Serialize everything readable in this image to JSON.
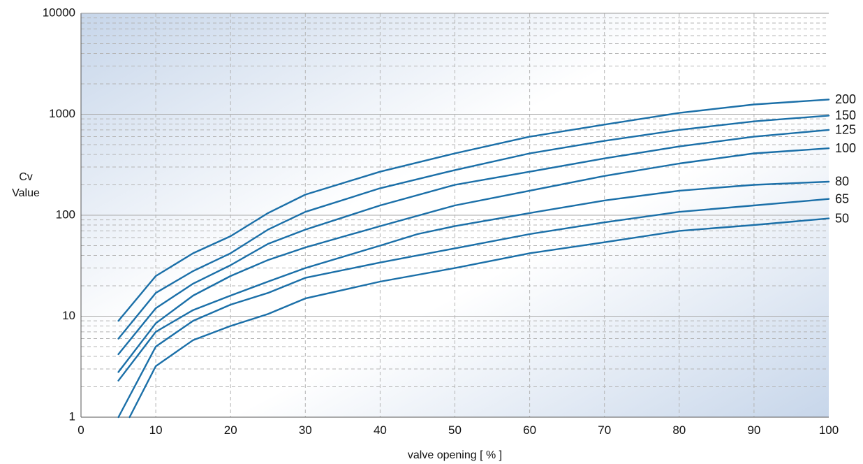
{
  "chart_data": {
    "type": "line",
    "title": "",
    "xlabel": "valve opening [ % ]",
    "ylabel": [
      "Cv",
      "Value"
    ],
    "xlim": [
      0,
      100
    ],
    "ylim": [
      1,
      10000
    ],
    "y_scale": "log",
    "x_ticks": [
      "0",
      "10",
      "20",
      "30",
      "40",
      "50",
      "60",
      "70",
      "80",
      "90",
      "100"
    ],
    "y_ticks": [
      "1",
      "10",
      "100",
      "1000",
      "10000"
    ],
    "grid": "on",
    "colors": {
      "line": "#1a6fa8",
      "grid_major": "#aaaaaa",
      "grid_minor": "#b4b4b4",
      "axis": "#555555",
      "bg_light": "#ffffff",
      "bg_dark": "#c7d6ea"
    },
    "series": [
      {
        "name": "200",
        "points": [
          [
            5,
            9
          ],
          [
            10,
            25
          ],
          [
            15,
            42
          ],
          [
            20,
            62
          ],
          [
            25,
            105
          ],
          [
            30,
            160
          ],
          [
            40,
            270
          ],
          [
            50,
            410
          ],
          [
            60,
            600
          ],
          [
            70,
            790
          ],
          [
            80,
            1030
          ],
          [
            90,
            1250
          ],
          [
            100,
            1400
          ]
        ]
      },
      {
        "name": "150",
        "points": [
          [
            5,
            6
          ],
          [
            10,
            17
          ],
          [
            15,
            28
          ],
          [
            20,
            42
          ],
          [
            25,
            72
          ],
          [
            30,
            108
          ],
          [
            40,
            185
          ],
          [
            50,
            280
          ],
          [
            60,
            410
          ],
          [
            70,
            545
          ],
          [
            80,
            700
          ],
          [
            90,
            850
          ],
          [
            100,
            970
          ]
        ]
      },
      {
        "name": "125",
        "points": [
          [
            5,
            4.2
          ],
          [
            10,
            12
          ],
          [
            15,
            21
          ],
          [
            20,
            32
          ],
          [
            25,
            52
          ],
          [
            30,
            72
          ],
          [
            40,
            125
          ],
          [
            50,
            200
          ],
          [
            60,
            270
          ],
          [
            70,
            365
          ],
          [
            80,
            480
          ],
          [
            90,
            600
          ],
          [
            100,
            700
          ]
        ]
      },
      {
        "name": "100",
        "points": [
          [
            5,
            2.8
          ],
          [
            10,
            8.5
          ],
          [
            15,
            16
          ],
          [
            20,
            25
          ],
          [
            25,
            36
          ],
          [
            30,
            48
          ],
          [
            40,
            78
          ],
          [
            50,
            125
          ],
          [
            60,
            175
          ],
          [
            70,
            245
          ],
          [
            80,
            325
          ],
          [
            90,
            410
          ],
          [
            100,
            460
          ]
        ]
      },
      {
        "name": "80",
        "points": [
          [
            5,
            2.3
          ],
          [
            10,
            7
          ],
          [
            15,
            11.5
          ],
          [
            20,
            16
          ],
          [
            25,
            22
          ],
          [
            30,
            30
          ],
          [
            40,
            50
          ],
          [
            45,
            65
          ],
          [
            50,
            78
          ],
          [
            60,
            105
          ],
          [
            70,
            140
          ],
          [
            80,
            175
          ],
          [
            90,
            200
          ],
          [
            100,
            215
          ]
        ]
      },
      {
        "name": "65",
        "points": [
          [
            5,
            1
          ],
          [
            10,
            5
          ],
          [
            15,
            9
          ],
          [
            20,
            13
          ],
          [
            25,
            17
          ],
          [
            30,
            24
          ],
          [
            40,
            34
          ],
          [
            50,
            47
          ],
          [
            60,
            65
          ],
          [
            70,
            85
          ],
          [
            80,
            108
          ],
          [
            90,
            125
          ],
          [
            100,
            145
          ]
        ]
      },
      {
        "name": "50",
        "points": [
          [
            6.5,
            1
          ],
          [
            10,
            3.2
          ],
          [
            15,
            5.8
          ],
          [
            20,
            8
          ],
          [
            25,
            10.5
          ],
          [
            30,
            15
          ],
          [
            40,
            22
          ],
          [
            50,
            30
          ],
          [
            60,
            42
          ],
          [
            70,
            54
          ],
          [
            80,
            70
          ],
          [
            90,
            80
          ],
          [
            100,
            93
          ]
        ]
      }
    ]
  }
}
